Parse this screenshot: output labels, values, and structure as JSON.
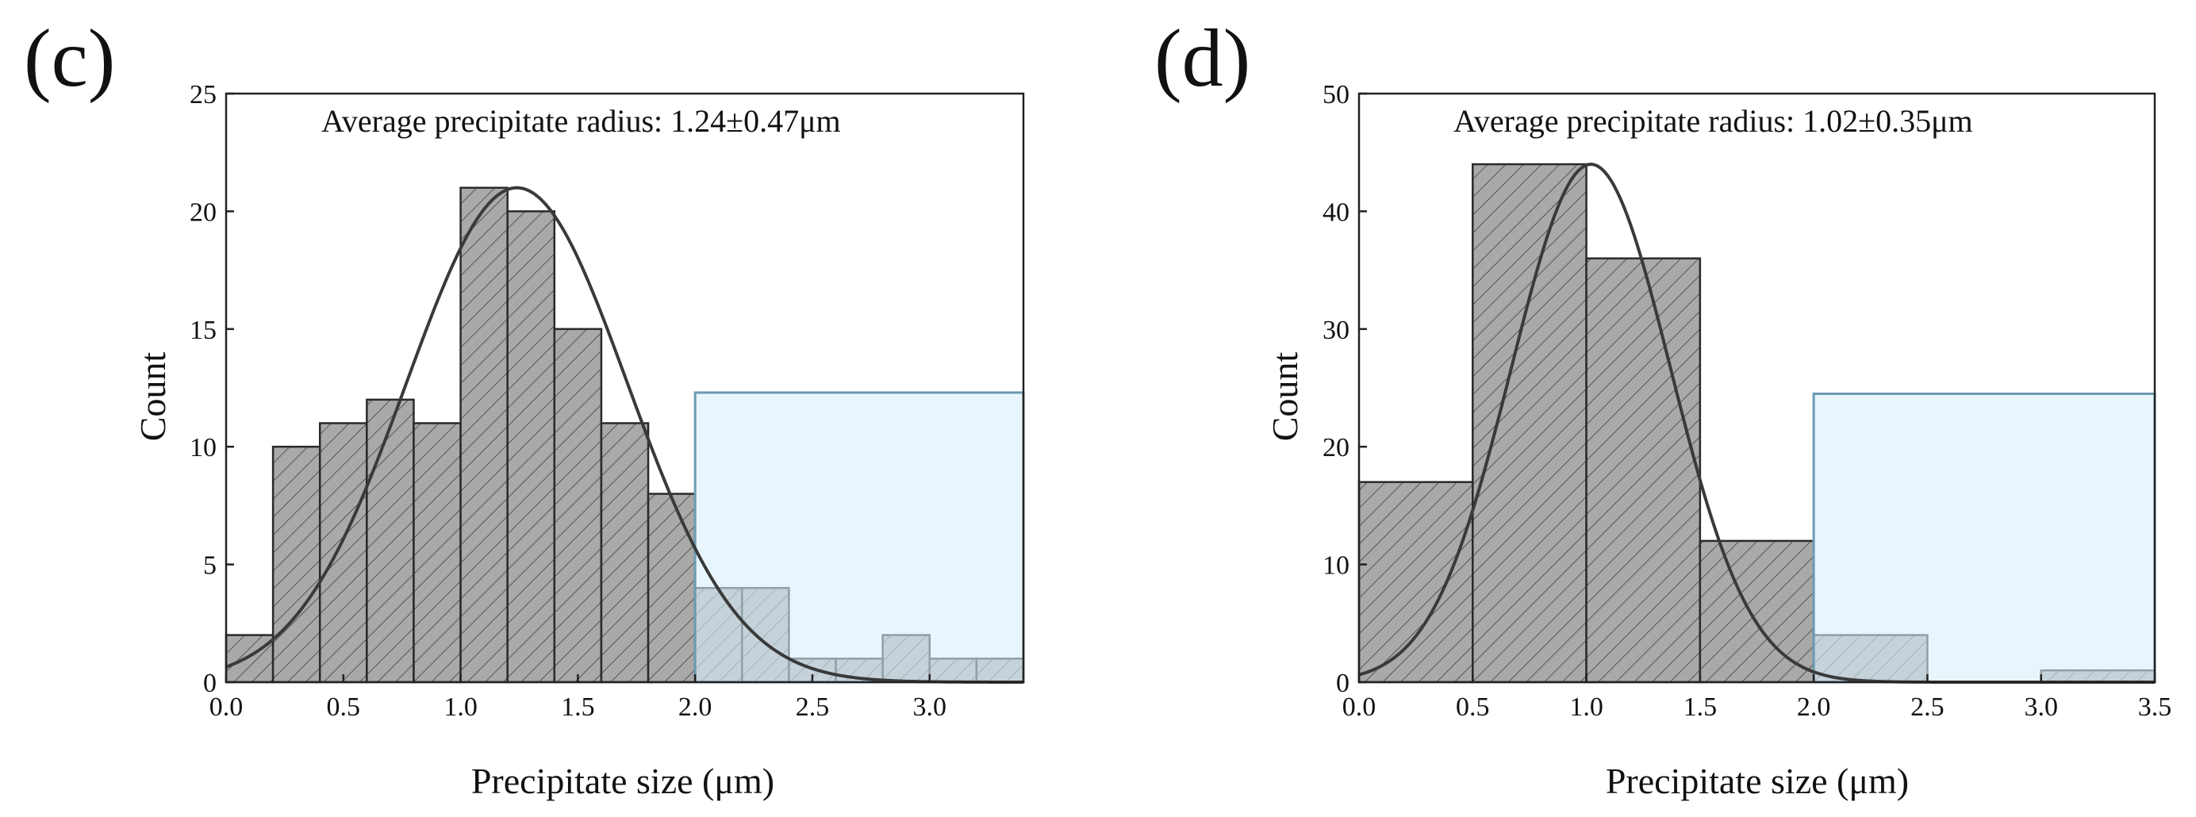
{
  "colors": {
    "bar_fill": "#a9a9a9",
    "hatch": "#555555",
    "highlight_fill": "#dbeefb",
    "highlight_stroke": "#6a9bb3",
    "curve": "#3a3a3a",
    "axis": "#222222"
  },
  "chart_data": [
    {
      "panel_label": "(c)",
      "type": "bar",
      "title": "",
      "annotation": "Average precipitate radius: 1.24±0.47μm",
      "xlabel": "Precipitate size (μm)",
      "ylabel": "Count",
      "xlim": [
        0,
        3.4
      ],
      "ylim": [
        0,
        25
      ],
      "xticks": [
        0.0,
        0.5,
        1.0,
        1.5,
        2.0,
        2.5,
        3.0
      ],
      "xtick_labels": [
        "0.0",
        "0.5",
        "1.0",
        "1.5",
        "2.0",
        "2.5",
        "3.0"
      ],
      "yticks": [
        0,
        5,
        10,
        15,
        20,
        25
      ],
      "ytick_labels": [
        "0",
        "5",
        "10",
        "15",
        "20",
        "25"
      ],
      "bin_width": 0.2,
      "bin_starts": [
        0.0,
        0.2,
        0.4,
        0.6,
        0.8,
        1.0,
        1.2,
        1.4,
        1.6,
        1.8,
        2.0,
        2.2,
        2.4,
        2.6,
        2.8,
        3.0,
        3.2
      ],
      "values": [
        2,
        10,
        11,
        12,
        11,
        21,
        20,
        15,
        11,
        8,
        4,
        4,
        1,
        1,
        2,
        1,
        1
      ],
      "fit": {
        "type": "gaussian",
        "mean": 1.24,
        "sd": 0.47,
        "peak": 21.0
      },
      "highlight_region": {
        "x_range": [
          2.0,
          3.4
        ],
        "y_top": 12.3
      }
    },
    {
      "panel_label": "(d)",
      "type": "bar",
      "title": "",
      "annotation": "Average precipitate radius: 1.02±0.35μm",
      "xlabel": "Precipitate size (μm)",
      "ylabel": "Count",
      "xlim": [
        0,
        3.5
      ],
      "ylim": [
        0,
        50
      ],
      "xticks": [
        0.0,
        0.5,
        1.0,
        1.5,
        2.0,
        2.5,
        3.0,
        3.5
      ],
      "xtick_labels": [
        "0.0",
        "0.5",
        "1.0",
        "1.5",
        "2.0",
        "2.5",
        "3.0",
        "3.5"
      ],
      "yticks": [
        0,
        10,
        20,
        30,
        40,
        50
      ],
      "ytick_labels": [
        "0",
        "10",
        "20",
        "30",
        "40",
        "50"
      ],
      "bin_width": 0.5,
      "bin_starts": [
        0.0,
        0.5,
        1.0,
        1.5,
        2.0,
        2.5,
        3.0
      ],
      "values": [
        17,
        44,
        36,
        12,
        4,
        0,
        1
      ],
      "fit": {
        "type": "gaussian",
        "mean": 1.02,
        "sd": 0.35,
        "peak": 44.0
      },
      "highlight_region": {
        "x_range": [
          2.0,
          3.5
        ],
        "y_top": 24.5
      }
    }
  ]
}
